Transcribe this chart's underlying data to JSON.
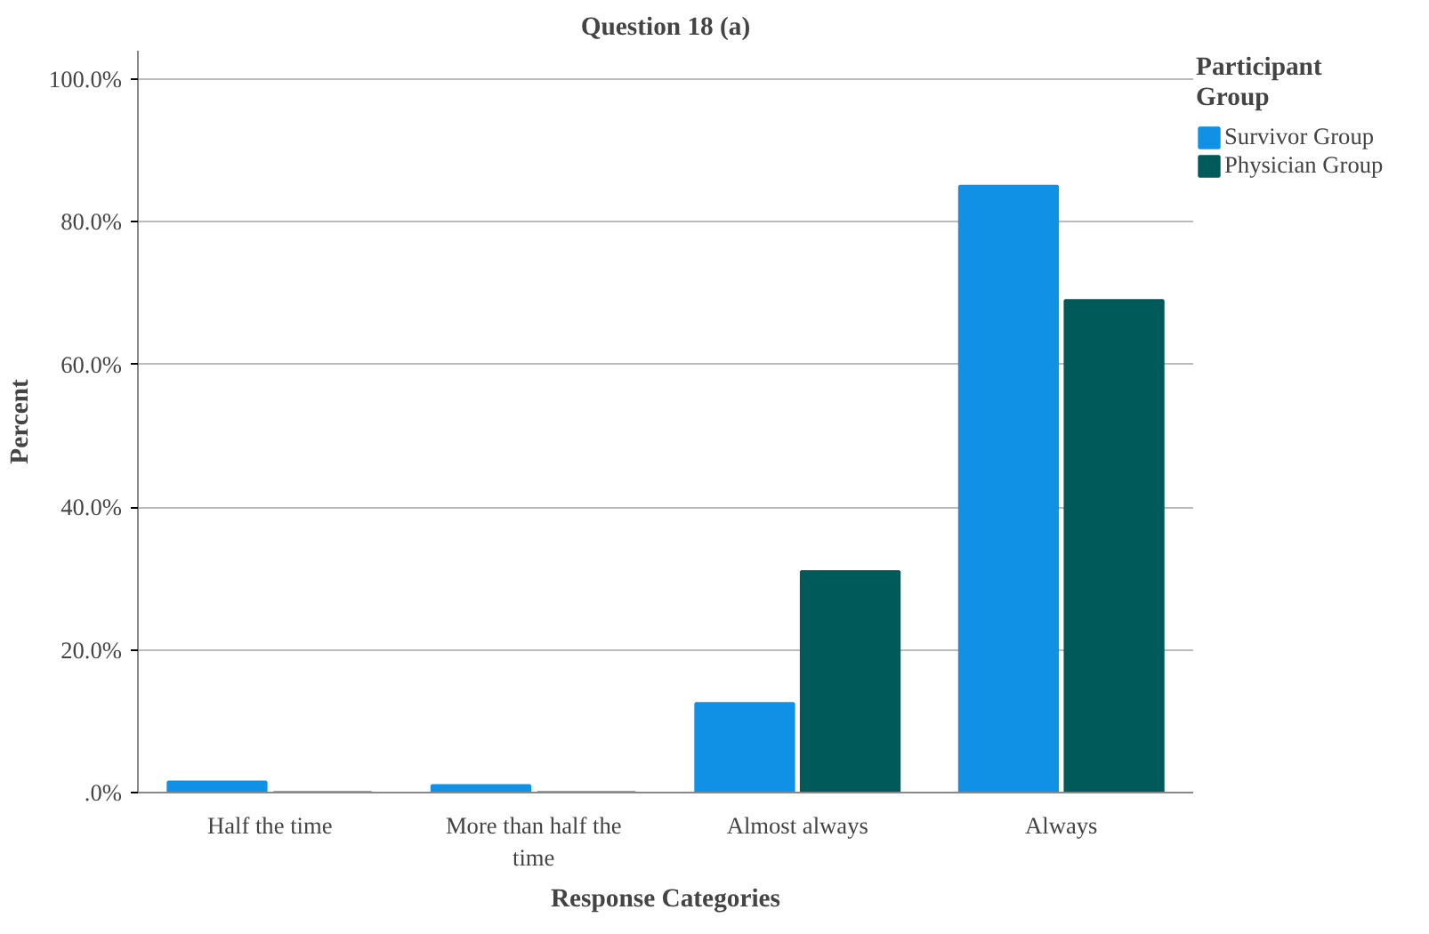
{
  "chart_data": {
    "type": "bar",
    "title": "Question 18 (a)",
    "xlabel": "Response Categories",
    "ylabel": "Percent",
    "legend_title": "Participant Group",
    "categories": [
      "Half the time",
      "More than half the time",
      "Almost always",
      "Always"
    ],
    "series": [
      {
        "name": "Survivor Group",
        "color": "#1191e6",
        "values": [
          1.5,
          1.0,
          12.5,
          85.0
        ]
      },
      {
        "name": "Physician Group",
        "color": "#005a5a",
        "values": [
          0,
          0,
          31,
          69
        ]
      }
    ],
    "ylim": [
      0,
      104
    ],
    "yticks": [
      {
        "value": 0,
        "label": ".0%"
      },
      {
        "value": 20,
        "label": "20.0%"
      },
      {
        "value": 40,
        "label": "40.0%"
      },
      {
        "value": 60,
        "label": "60.0%"
      },
      {
        "value": 80,
        "label": "80.0%"
      },
      {
        "value": 100,
        "label": "100.0%"
      }
    ],
    "grid": "y",
    "legend": "top right"
  }
}
